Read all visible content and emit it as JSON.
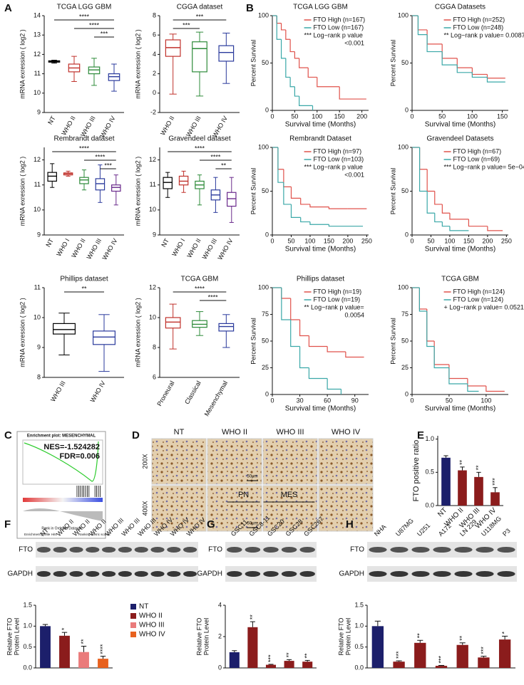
{
  "chart_data": [
    {
      "type": "box",
      "panel": "A",
      "title": "TCGA LGG GBM",
      "ylabel": "mRNA exression ( log2 )",
      "categories": [
        "NT",
        "WHO II",
        "WHO III",
        "WHO IV"
      ],
      "colors": [
        "#000000",
        "#c0312b",
        "#2e8b3a",
        "#2a3a9c"
      ],
      "boxes": [
        [
          11.55,
          11.6,
          11.63,
          11.67,
          11.7
        ],
        [
          10.6,
          11.1,
          11.3,
          11.5,
          11.9
        ],
        [
          10.4,
          11.0,
          11.2,
          11.35,
          11.8
        ],
        [
          10.1,
          10.65,
          10.85,
          11.0,
          11.5
        ]
      ],
      "ylim": [
        9,
        14
      ],
      "yticks": [
        9,
        10,
        11,
        12,
        13,
        14
      ],
      "comparisons": [
        {
          "pair": [
            "NT",
            "WHO IV"
          ],
          "label": "****"
        },
        {
          "pair": [
            "WHO II",
            "WHO IV"
          ],
          "label": "****"
        },
        {
          "pair": [
            "WHO III",
            "WHO IV"
          ],
          "label": "***"
        }
      ]
    },
    {
      "type": "box",
      "title": "CGGA dataset",
      "ylabel": "mRNA exression ( log2 )",
      "categories": [
        "WHO II",
        "WHO III",
        "WHO IV"
      ],
      "colors": [
        "#c0312b",
        "#2e8b3a",
        "#2a3a9c"
      ],
      "boxes": [
        [
          -0.1,
          3.8,
          4.7,
          5.5,
          6.1
        ],
        [
          -0.3,
          2.2,
          4.6,
          5.3,
          6.3
        ],
        [
          1.0,
          3.3,
          4.2,
          4.9,
          6.2
        ]
      ],
      "ylim": [
        -2,
        8
      ],
      "yticks": [
        -2,
        0,
        2,
        4,
        6,
        8
      ],
      "comparisons": [
        {
          "pair": [
            "WHO II",
            "WHO IV"
          ],
          "label": "***"
        },
        {
          "pair": [
            "WHO II",
            "WHO III"
          ],
          "label": "***"
        }
      ]
    },
    {
      "type": "box",
      "title": "Rembrandt dataset",
      "ylabel": "mRNA exression ( log2 )",
      "categories": [
        "NT",
        "WHO I",
        "WHO II",
        "WHO III",
        "WHO IV"
      ],
      "colors": [
        "#000000",
        "#c0312b",
        "#2e8b3a",
        "#2a3a9c",
        "#6a2a8c"
      ],
      "boxes": [
        [
          10.9,
          11.15,
          11.35,
          11.5,
          11.85
        ],
        [
          11.35,
          11.4,
          11.45,
          11.48,
          11.55
        ],
        [
          10.8,
          11.05,
          11.2,
          11.3,
          11.6
        ],
        [
          10.3,
          10.8,
          11.05,
          11.25,
          11.8
        ],
        [
          10.2,
          10.75,
          10.9,
          11.0,
          11.4
        ]
      ],
      "ylim": [
        9,
        12.5
      ],
      "yticks": [
        9,
        10,
        11,
        12
      ],
      "comparisons": [
        {
          "pair": [
            "NT",
            "WHO IV"
          ],
          "label": "****"
        },
        {
          "pair": [
            "WHO II",
            "WHO IV"
          ],
          "label": "****"
        },
        {
          "pair": [
            "WHO III",
            "WHO IV"
          ],
          "label": "***"
        }
      ]
    },
    {
      "type": "box",
      "title": "Gravendeel dataset",
      "ylabel": "mRNA exression ( log2 )",
      "categories": [
        "NT",
        "WHO I",
        "WHO II",
        "WHO III",
        "WHO IV"
      ],
      "colors": [
        "#000000",
        "#c0312b",
        "#2e8b3a",
        "#2a3a9c",
        "#6a2a8c"
      ],
      "boxes": [
        [
          10.5,
          10.85,
          11.1,
          11.3,
          11.5
        ],
        [
          10.7,
          11.0,
          11.15,
          11.35,
          11.55
        ],
        [
          10.2,
          10.85,
          11.0,
          11.15,
          11.4
        ],
        [
          9.9,
          10.4,
          10.6,
          10.8,
          11.3
        ],
        [
          9.5,
          10.15,
          10.45,
          10.7,
          11.3
        ]
      ],
      "ylim": [
        9,
        12.5
      ],
      "yticks": [
        9,
        10,
        11,
        12
      ],
      "comparisons": [
        {
          "pair": [
            "NT",
            "WHO IV"
          ],
          "label": "****"
        },
        {
          "pair": [
            "WHO II",
            "WHO IV"
          ],
          "label": "****"
        },
        {
          "pair": [
            "WHO III",
            "WHO IV"
          ],
          "label": "**"
        }
      ]
    },
    {
      "type": "box",
      "title": "Phillips dataset",
      "ylabel": "mRNA exression ( log2 )",
      "categories": [
        "WHO III",
        "WHO IV"
      ],
      "colors": [
        "#000000",
        "#2a3a9c"
      ],
      "boxes": [
        [
          8.75,
          9.45,
          9.6,
          9.8,
          10.15
        ],
        [
          8.2,
          9.1,
          9.35,
          9.55,
          10.1
        ]
      ],
      "ylim": [
        8,
        11
      ],
      "yticks": [
        8,
        9,
        10,
        11
      ],
      "comparisons": [
        {
          "pair": [
            "WHO III",
            "WHO IV"
          ],
          "label": "**"
        }
      ]
    },
    {
      "type": "box",
      "title": "TCGA GBM",
      "ylabel": "mRNA exression ( log2 )",
      "categories": [
        "Proneural",
        "Classical",
        "Mesenchymal"
      ],
      "colors": [
        "#c0312b",
        "#2e8b3a",
        "#2a3a9c"
      ],
      "boxes": [
        [
          7.9,
          9.3,
          9.7,
          10.0,
          10.9
        ],
        [
          8.8,
          9.35,
          9.55,
          9.8,
          10.4
        ],
        [
          8.0,
          9.1,
          9.4,
          9.6,
          10.2
        ]
      ],
      "ylim": [
        6,
        12
      ],
      "yticks": [
        6,
        8,
        10,
        12
      ],
      "comparisons": [
        {
          "pair": [
            "Proneural",
            "Mesenchymal"
          ],
          "label": "****"
        },
        {
          "pair": [
            "Classical",
            "Mesenchymal"
          ],
          "label": "****"
        }
      ]
    },
    {
      "type": "km",
      "panel": "B",
      "title": "TCGA LGG GBM",
      "xlabel": "Survival time (Months)",
      "ylabel": "Percent Survival",
      "series": [
        {
          "name": "FTO High (n=167)",
          "color": "#e0524b",
          "x": [
            0,
            10,
            20,
            30,
            40,
            50,
            60,
            80,
            100,
            150,
            210
          ],
          "values": [
            100,
            92,
            85,
            75,
            62,
            55,
            45,
            35,
            25,
            12,
            12
          ]
        },
        {
          "name": "FTO Low (n=167)",
          "color": "#3aa8a8",
          "x": [
            0,
            10,
            20,
            30,
            40,
            50,
            60,
            90
          ],
          "values": [
            100,
            75,
            55,
            35,
            25,
            15,
            5,
            0
          ]
        }
      ],
      "annotation": [
        "*** Log−rank p value",
        "<0.001"
      ],
      "xlim": [
        0,
        215
      ],
      "xticks": [
        0,
        50,
        100,
        150,
        200
      ],
      "ylim": [
        0,
        100
      ],
      "yticks": [
        0,
        50,
        100
      ]
    },
    {
      "type": "km",
      "title": "CGGA Datasets",
      "xlabel": "Survival time (Months)",
      "ylabel": "Percent Survival",
      "series": [
        {
          "name": "FTO High (n=252)",
          "color": "#e0524b",
          "x": [
            0,
            10,
            25,
            50,
            75,
            100,
            125,
            155
          ],
          "values": [
            100,
            85,
            70,
            55,
            45,
            38,
            34,
            34
          ]
        },
        {
          "name": "FTO Low (n=248)",
          "color": "#3aa8a8",
          "x": [
            0,
            10,
            25,
            50,
            75,
            100,
            125,
            155
          ],
          "values": [
            100,
            80,
            62,
            48,
            40,
            35,
            30,
            30
          ]
        }
      ],
      "annotation": [
        "** Log−rank p value= 0.0087"
      ],
      "xlim": [
        0,
        160
      ],
      "xticks": [
        0,
        50,
        100,
        150
      ],
      "ylim": [
        0,
        100
      ],
      "yticks": [
        0,
        50,
        100
      ]
    },
    {
      "type": "km",
      "title": "Rembrandt Dataset",
      "xlabel": "Survival time (Months)",
      "ylabel": "Percent Survival",
      "series": [
        {
          "name": "FTO High (n=97)",
          "color": "#e0524b",
          "x": [
            0,
            15,
            30,
            50,
            75,
            100,
            150,
            200,
            250
          ],
          "values": [
            100,
            75,
            55,
            42,
            35,
            32,
            30,
            30,
            30
          ]
        },
        {
          "name": "FTO Low (n=103)",
          "color": "#3aa8a8",
          "x": [
            0,
            15,
            30,
            50,
            75,
            100,
            150,
            240
          ],
          "values": [
            100,
            60,
            35,
            20,
            15,
            12,
            10,
            10
          ]
        }
      ],
      "annotation": [
        "*** Log−rank p value",
        "<0.001"
      ],
      "xlim": [
        0,
        255
      ],
      "xticks": [
        0,
        50,
        100,
        150,
        200,
        250
      ],
      "ylim": [
        0,
        100
      ],
      "yticks": [
        0,
        50,
        100
      ]
    },
    {
      "type": "km",
      "title": "Gravendeel Datasets",
      "xlabel": "Survival time (Months)",
      "ylabel": "Percent Survival",
      "series": [
        {
          "name": "FTO High (n=67)",
          "color": "#e0524b",
          "x": [
            0,
            20,
            40,
            60,
            80,
            100,
            150,
            200,
            240
          ],
          "values": [
            100,
            75,
            50,
            35,
            25,
            18,
            10,
            5,
            5
          ]
        },
        {
          "name": "FTO Low (n=69)",
          "color": "#3aa8a8",
          "x": [
            0,
            20,
            40,
            60,
            80,
            100,
            150
          ],
          "values": [
            100,
            50,
            25,
            15,
            10,
            5,
            5
          ]
        }
      ],
      "annotation": [
        "*** Log−rank p value= 5e−04"
      ],
      "xlim": [
        0,
        255
      ],
      "xticks": [
        0,
        50,
        100,
        150,
        200,
        250
      ],
      "ylim": [
        0,
        100
      ],
      "yticks": [
        0,
        50,
        100
      ]
    },
    {
      "type": "km",
      "title": "Phillips dataset",
      "xlabel": "Survival time (Months)",
      "ylabel": "Percent Survival",
      "series": [
        {
          "name": "FTO High (n=19)",
          "color": "#e0524b",
          "x": [
            0,
            10,
            20,
            30,
            40,
            60,
            80,
            100
          ],
          "values": [
            100,
            90,
            70,
            55,
            45,
            40,
            35,
            35
          ]
        },
        {
          "name": "FTO Low (n=19)",
          "color": "#3aa8a8",
          "x": [
            0,
            10,
            20,
            30,
            40,
            60,
            75
          ],
          "values": [
            100,
            70,
            45,
            25,
            15,
            5,
            0
          ]
        }
      ],
      "annotation": [
        "** Log−rank p value=",
        "0.0054"
      ],
      "xlim": [
        0,
        105
      ],
      "xticks": [
        0,
        30,
        60,
        90
      ],
      "ylim": [
        0,
        100
      ],
      "yticks": [
        0,
        25,
        50,
        75,
        100
      ]
    },
    {
      "type": "km",
      "title": "TCGA GBM",
      "xlabel": "Survival time (Months)",
      "ylabel": "Percent Survival",
      "series": [
        {
          "name": "FTO High (n=124)",
          "color": "#e0524b",
          "x": [
            0,
            10,
            20,
            30,
            50,
            75,
            100,
            125
          ],
          "values": [
            100,
            80,
            50,
            28,
            15,
            8,
            3,
            3
          ]
        },
        {
          "name": "FTO Low (n=124)",
          "color": "#3aa8a8",
          "x": [
            0,
            10,
            20,
            30,
            50,
            75,
            90
          ],
          "values": [
            100,
            78,
            45,
            25,
            10,
            3,
            3
          ]
        }
      ],
      "annotation": [
        "+ Log−rank p value= 0.0521"
      ],
      "xlim": [
        0,
        130
      ],
      "xticks": [
        0,
        50,
        100
      ],
      "ylim": [
        0,
        100
      ],
      "yticks": [
        0,
        25,
        50,
        75,
        100
      ]
    },
    {
      "type": "enrichment",
      "panel": "C",
      "title": "Enrichment plot: MESENCHYMAL",
      "stats": [
        "NES=-1.524282",
        "FDR=0.006"
      ],
      "xlabel": "Rank in Ordered Dataset",
      "legend": [
        "Enrichment profile",
        "Hits",
        "Ranking metric scores"
      ]
    },
    {
      "type": "ihc",
      "panel": "D",
      "columns": [
        "NT",
        "WHO II",
        "WHO III",
        "WHO IV"
      ],
      "rows": [
        "200X",
        "400X"
      ],
      "scale": "50μm"
    },
    {
      "type": "bar",
      "panel": "E",
      "ylabel": "FTO positive ratio",
      "categories": [
        "NT",
        "WHO II",
        "WHO III",
        "WHO IV"
      ],
      "values": [
        0.72,
        0.53,
        0.43,
        0.2
      ],
      "errors": [
        0.03,
        0.05,
        0.07,
        0.07
      ],
      "colors": [
        "#1c1f6b",
        "#8b1c1c",
        "#8b1c1c",
        "#8b1c1c"
      ],
      "stars": [
        null,
        "**",
        "**",
        "***"
      ],
      "ylim": [
        0,
        1.05
      ],
      "yticks": [
        {
          "value": 0,
          "label": "0.0"
        },
        0.5,
        {
          "value": 1,
          "label": "1.0"
        }
      ]
    },
    {
      "type": "blot",
      "panel": "F",
      "lanes": [
        "NT",
        "WHO II",
        "WHO II",
        "WHO II",
        "WHO III",
        "WHO III",
        "WHO III",
        "WHO IV",
        "WHO IV",
        "WHO IV"
      ],
      "rows": [
        "FTO",
        "GAPDH"
      ],
      "ylabel": [
        "Relative FTO",
        "Protein Level"
      ],
      "categories": [
        "NT",
        "WHO II",
        "WHO III",
        "WHO IV"
      ],
      "values": [
        1.0,
        0.77,
        0.38,
        0.22
      ],
      "errors": [
        0.04,
        0.08,
        0.14,
        0.06
      ],
      "colors": [
        "#1c1f6b",
        "#8b1c1c",
        "#ea7b7b",
        "#e8621f"
      ],
      "stars": [
        null,
        "*",
        "**",
        "****"
      ],
      "ylim": [
        0,
        1.5
      ],
      "yticks": [
        {
          "value": 0,
          "label": "0.0"
        },
        0.5,
        {
          "value": 1,
          "label": "1.0"
        },
        1.5
      ],
      "legend": true
    },
    {
      "type": "blot",
      "panel": "G",
      "lanes": [
        "GSC11",
        "GSC8-11",
        "GSC20",
        "GSC28",
        "GSC267"
      ],
      "groups": [
        {
          "name": "PN",
          "span": [
            "GSC11",
            "GSC8-11"
          ]
        },
        {
          "name": "MES",
          "span": [
            "GSC20",
            "GSC267"
          ]
        }
      ],
      "rows": [
        "FTO",
        "GAPDH"
      ],
      "ylabel": [
        "Relative FTO",
        "Protein Level"
      ],
      "values": [
        1.0,
        2.6,
        0.2,
        0.45,
        0.4
      ],
      "errors": [
        0.1,
        0.35,
        0.03,
        0.08,
        0.08
      ],
      "colors": [
        "#1c1f6b",
        "#8b1c1c",
        "#8b1c1c",
        "#8b1c1c",
        "#8b1c1c"
      ],
      "stars": [
        null,
        "**",
        "***",
        "**",
        "**"
      ],
      "ylim": [
        0,
        4
      ],
      "yticks": [
        0,
        2,
        4
      ]
    },
    {
      "type": "blot",
      "panel": "H",
      "lanes": [
        "NHA",
        "U87MG",
        "U251",
        "A172",
        "LN 229",
        "U118MG",
        "P3"
      ],
      "rows": [
        "FTO",
        "GAPDH"
      ],
      "ylabel": [
        "Relative FTO",
        "Protein Level"
      ],
      "values": [
        1.0,
        0.15,
        0.6,
        0.05,
        0.55,
        0.25,
        0.68
      ],
      "errors": [
        0.12,
        0.02,
        0.06,
        0.01,
        0.05,
        0.03,
        0.08
      ],
      "colors": [
        "#1c1f6b",
        "#8b1c1c",
        "#8b1c1c",
        "#8b1c1c",
        "#8b1c1c",
        "#8b1c1c",
        "#8b1c1c"
      ],
      "stars": [
        null,
        "***",
        "**",
        "***",
        "**",
        "***",
        "*"
      ],
      "ylim": [
        0,
        1.5
      ],
      "yticks": [
        {
          "value": 0,
          "label": "0.0"
        },
        0.5,
        {
          "value": 1,
          "label": "1.0"
        },
        1.5
      ]
    }
  ]
}
